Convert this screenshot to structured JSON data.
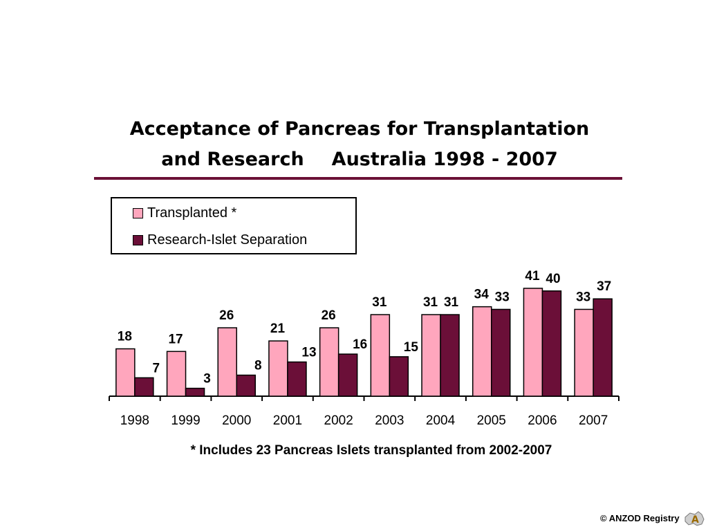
{
  "page": {
    "title_line1": "Acceptance of Pancreas for Transplantation",
    "title_line2_a": "and Research",
    "title_line2_b": "Australia 1998 - 2007",
    "footnote": "* Includes 23 Pancreas Islets transplanted from 2002-2007",
    "copyright": "© ANZOD Registry"
  },
  "colors": {
    "transplanted": "#ffa6bd",
    "research": "#6b0f38",
    "rule": "#6b1036"
  },
  "chart_data": {
    "type": "bar",
    "categories": [
      "1998",
      "1999",
      "2000",
      "2001",
      "2002",
      "2003",
      "2004",
      "2005",
      "2006",
      "2007"
    ],
    "series": [
      {
        "name": "Transplanted *",
        "values": [
          18,
          17,
          26,
          21,
          26,
          31,
          31,
          34,
          41,
          33
        ]
      },
      {
        "name": "Research-Islet Separation",
        "values": [
          7,
          3,
          8,
          13,
          16,
          15,
          31,
          33,
          40,
          37
        ]
      }
    ],
    "ylim": [
      0,
      41
    ],
    "grid": false,
    "legend": "top-left",
    "data_labels": true
  }
}
